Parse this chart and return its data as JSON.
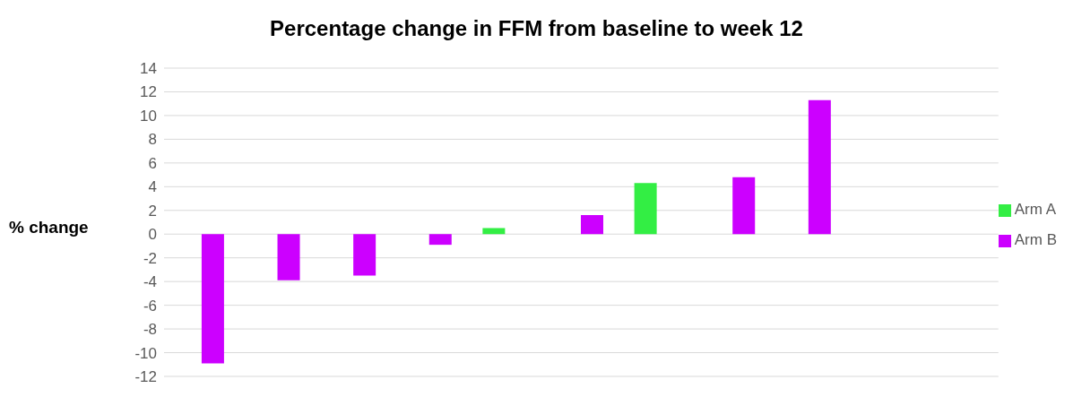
{
  "chart_data": {
    "type": "bar",
    "title": "Percentage change in FFM from baseline to week 12",
    "ylabel": "% change",
    "categories": [
      null,
      null,
      null,
      null,
      null,
      null,
      null,
      null,
      null,
      null,
      null
    ],
    "series": [
      {
        "name": "Arm A",
        "color": "#33ee44",
        "values": [
          null,
          null,
          null,
          null,
          0.5,
          null,
          4.3,
          null,
          null,
          null,
          null
        ]
      },
      {
        "name": "Arm B",
        "color": "#cc00ff",
        "values": [
          -10.9,
          -3.9,
          -3.5,
          -0.9,
          null,
          1.6,
          null,
          4.8,
          11.3,
          null,
          null
        ]
      }
    ],
    "ylim": [
      -12,
      14
    ],
    "yticks": [
      -12,
      -10,
      -8,
      -6,
      -4,
      -2,
      0,
      2,
      4,
      6,
      8,
      10,
      12,
      14
    ],
    "grid": "y",
    "legend": "right"
  }
}
